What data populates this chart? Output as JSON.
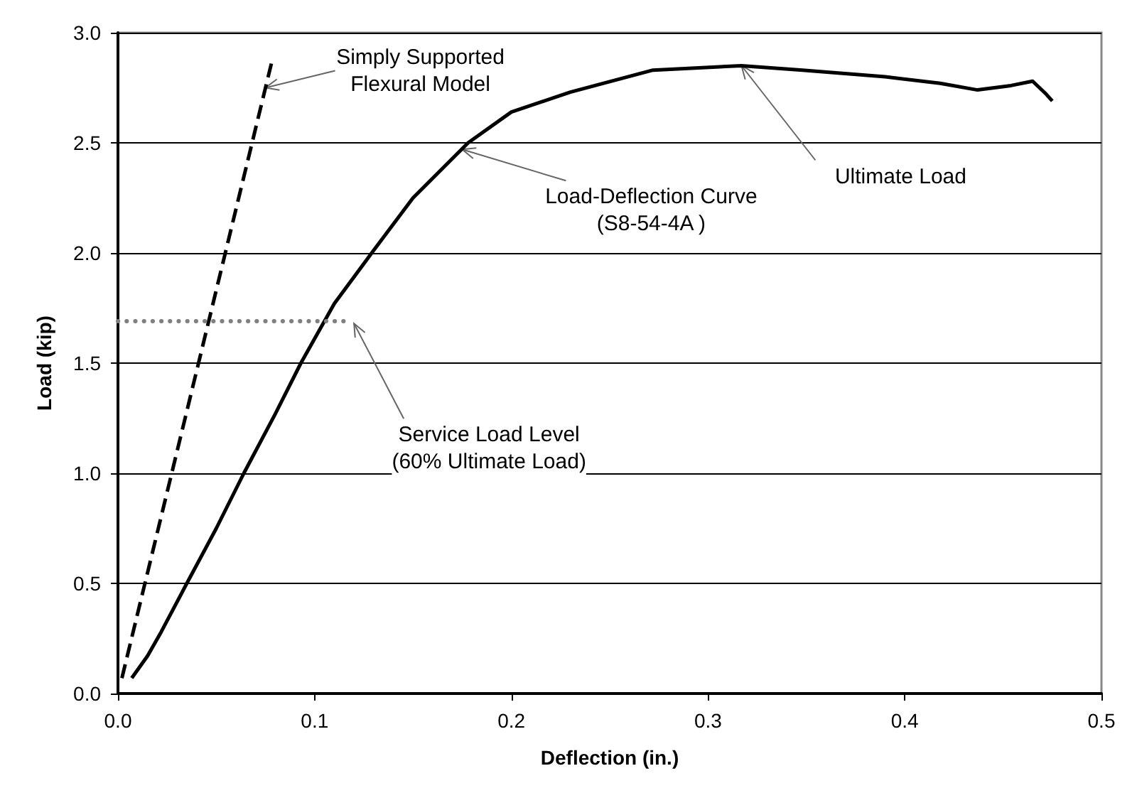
{
  "chart_data": {
    "type": "line",
    "xlabel": "Deflection (in.)",
    "ylabel": "Load (kip)",
    "xlim": [
      0,
      0.5
    ],
    "ylim": [
      0,
      3
    ],
    "xticks": [
      {
        "value": 0,
        "label": "0.0"
      },
      {
        "value": 0.1,
        "label": "0.1"
      },
      {
        "value": 0.2,
        "label": "0.2"
      },
      {
        "value": 0.3,
        "label": "0.3"
      },
      {
        "value": 0.4,
        "label": "0.4"
      },
      {
        "value": 0.5,
        "label": "0.5"
      }
    ],
    "yticks": [
      {
        "value": 0,
        "label": "0.0"
      },
      {
        "value": 0.5,
        "label": "0.5"
      },
      {
        "value": 1,
        "label": "1.0"
      },
      {
        "value": 1.5,
        "label": "1.5"
      },
      {
        "value": 2,
        "label": "2.0"
      },
      {
        "value": 2.5,
        "label": "2.5"
      },
      {
        "value": 3,
        "label": "3.0"
      }
    ],
    "grid": "y",
    "marker": "none",
    "series": [
      {
        "color": "#000000",
        "line_style": "solid",
        "x": [
          0.007,
          0.015,
          0.022,
          0.035,
          0.05,
          0.064,
          0.08,
          0.093,
          0.11,
          0.129,
          0.15,
          0.178,
          0.2,
          0.23,
          0.272,
          0.317,
          0.348,
          0.39,
          0.418,
          0.437,
          0.454,
          0.465,
          0.472,
          0.475
        ],
        "values": [
          0.07,
          0.17,
          0.28,
          0.5,
          0.75,
          1.0,
          1.27,
          1.5,
          1.77,
          2.0,
          2.25,
          2.5,
          2.64,
          2.73,
          2.83,
          2.85,
          2.83,
          2.8,
          2.77,
          2.74,
          2.76,
          2.78,
          2.72,
          2.69
        ]
      },
      {
        "color": "#000000",
        "line_style": "dashed",
        "x": [
          0.002,
          0.078
        ],
        "values": [
          0.07,
          2.86
        ]
      },
      {
        "color": "#808080",
        "line_style": "dotted",
        "x": [
          0,
          0.119
        ],
        "values": [
          1.69,
          1.69
        ]
      }
    ],
    "annotations": [
      {
        "text": "Simply Supported\nFlexural Model",
        "x": 0.075,
        "y": 2.75
      },
      {
        "text": "Load-Deflection Curve\n(S8-54-4A )",
        "x": 0.175,
        "y": 2.47
      },
      {
        "text": "Ultimate Load",
        "x": 0.317,
        "y": 2.85
      },
      {
        "text": "Service Load Level\n(60% Ultimate Load)",
        "x": 0.12,
        "y": 1.68
      }
    ]
  }
}
